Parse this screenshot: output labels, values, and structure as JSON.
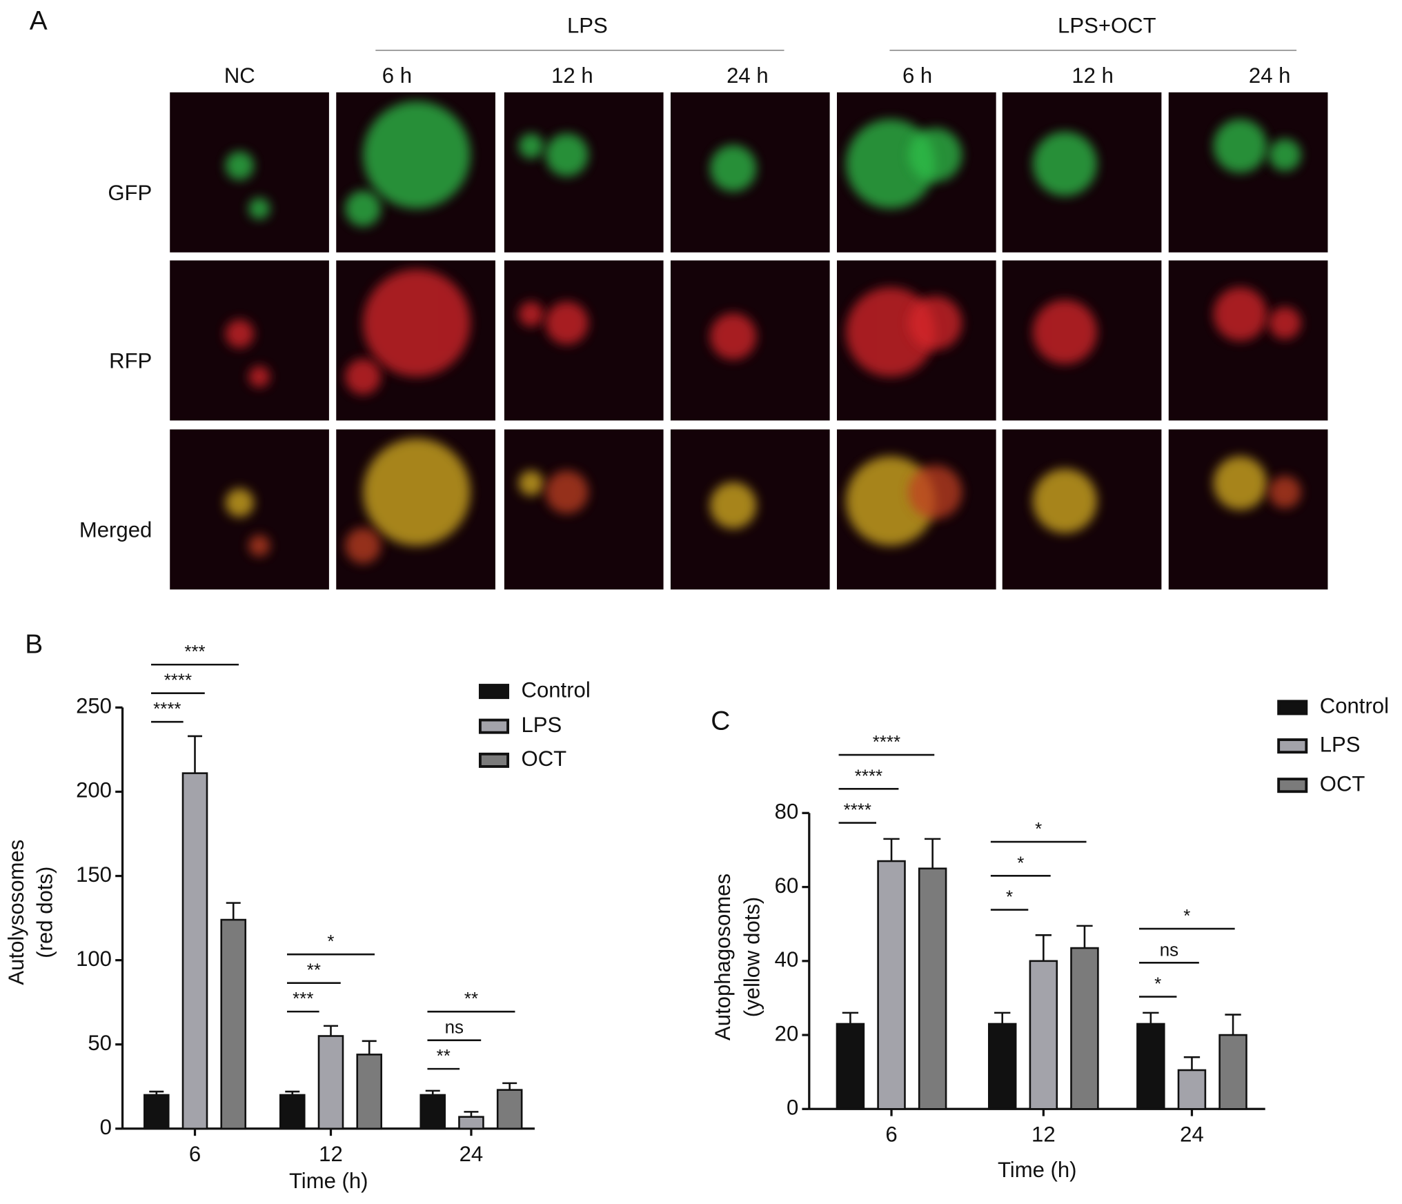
{
  "panel_labels": [
    "A",
    "B",
    "C"
  ],
  "panel_a": {
    "groups": [
      "LPS",
      "LPS+OCT"
    ],
    "columns": [
      "NC",
      "6 h",
      "12 h",
      "24 h",
      "6 h",
      "12 h",
      "24 h"
    ],
    "rows": [
      "GFP",
      "RFP",
      "Merged"
    ]
  },
  "chart_data": [
    {
      "type": "bar",
      "y_label": [
        "Autolysosomes",
        "(red dots)"
      ],
      "x_label": "Time (h)",
      "categories": [
        "6",
        "12",
        "24"
      ],
      "series": [
        {
          "name": "Control",
          "color": "#111111",
          "values": [
            20,
            20,
            20
          ],
          "errors": [
            2,
            2,
            2.5
          ]
        },
        {
          "name": "LPS",
          "color": "#a3a3aa",
          "values": [
            211,
            55,
            7
          ],
          "errors": [
            22,
            6,
            3
          ]
        },
        {
          "name": "OCT",
          "color": "#7b7b7b",
          "values": [
            124,
            44,
            23
          ],
          "errors": [
            10,
            8,
            4
          ]
        }
      ],
      "ylim": [
        0,
        250
      ],
      "yticks": [
        0,
        50,
        100,
        150,
        200,
        250
      ],
      "significance": [
        [
          "****",
          "****",
          "***"
        ],
        [
          "***",
          "**",
          "*"
        ],
        [
          "**",
          "ns",
          "**"
        ]
      ]
    },
    {
      "type": "bar",
      "y_label": [
        "Autophagosomes",
        "(yellow dots)"
      ],
      "x_label": "Time (h)",
      "categories": [
        "6",
        "12",
        "24"
      ],
      "series": [
        {
          "name": "Control",
          "color": "#111111",
          "values": [
            23,
            23,
            23
          ],
          "errors": [
            3,
            3,
            3
          ]
        },
        {
          "name": "LPS",
          "color": "#a3a3aa",
          "values": [
            67,
            40,
            10.5
          ],
          "errors": [
            6,
            7,
            3.5
          ]
        },
        {
          "name": "OCT",
          "color": "#7b7b7b",
          "values": [
            65,
            43.5,
            20
          ],
          "errors": [
            8,
            6,
            5.5
          ]
        }
      ],
      "ylim": [
        0,
        80
      ],
      "yticks": [
        0,
        20,
        40,
        60,
        80
      ],
      "significance": [
        [
          "****",
          "****",
          "****"
        ],
        [
          "*",
          "*",
          "*"
        ],
        [
          "*",
          "ns",
          "*"
        ]
      ]
    }
  ]
}
